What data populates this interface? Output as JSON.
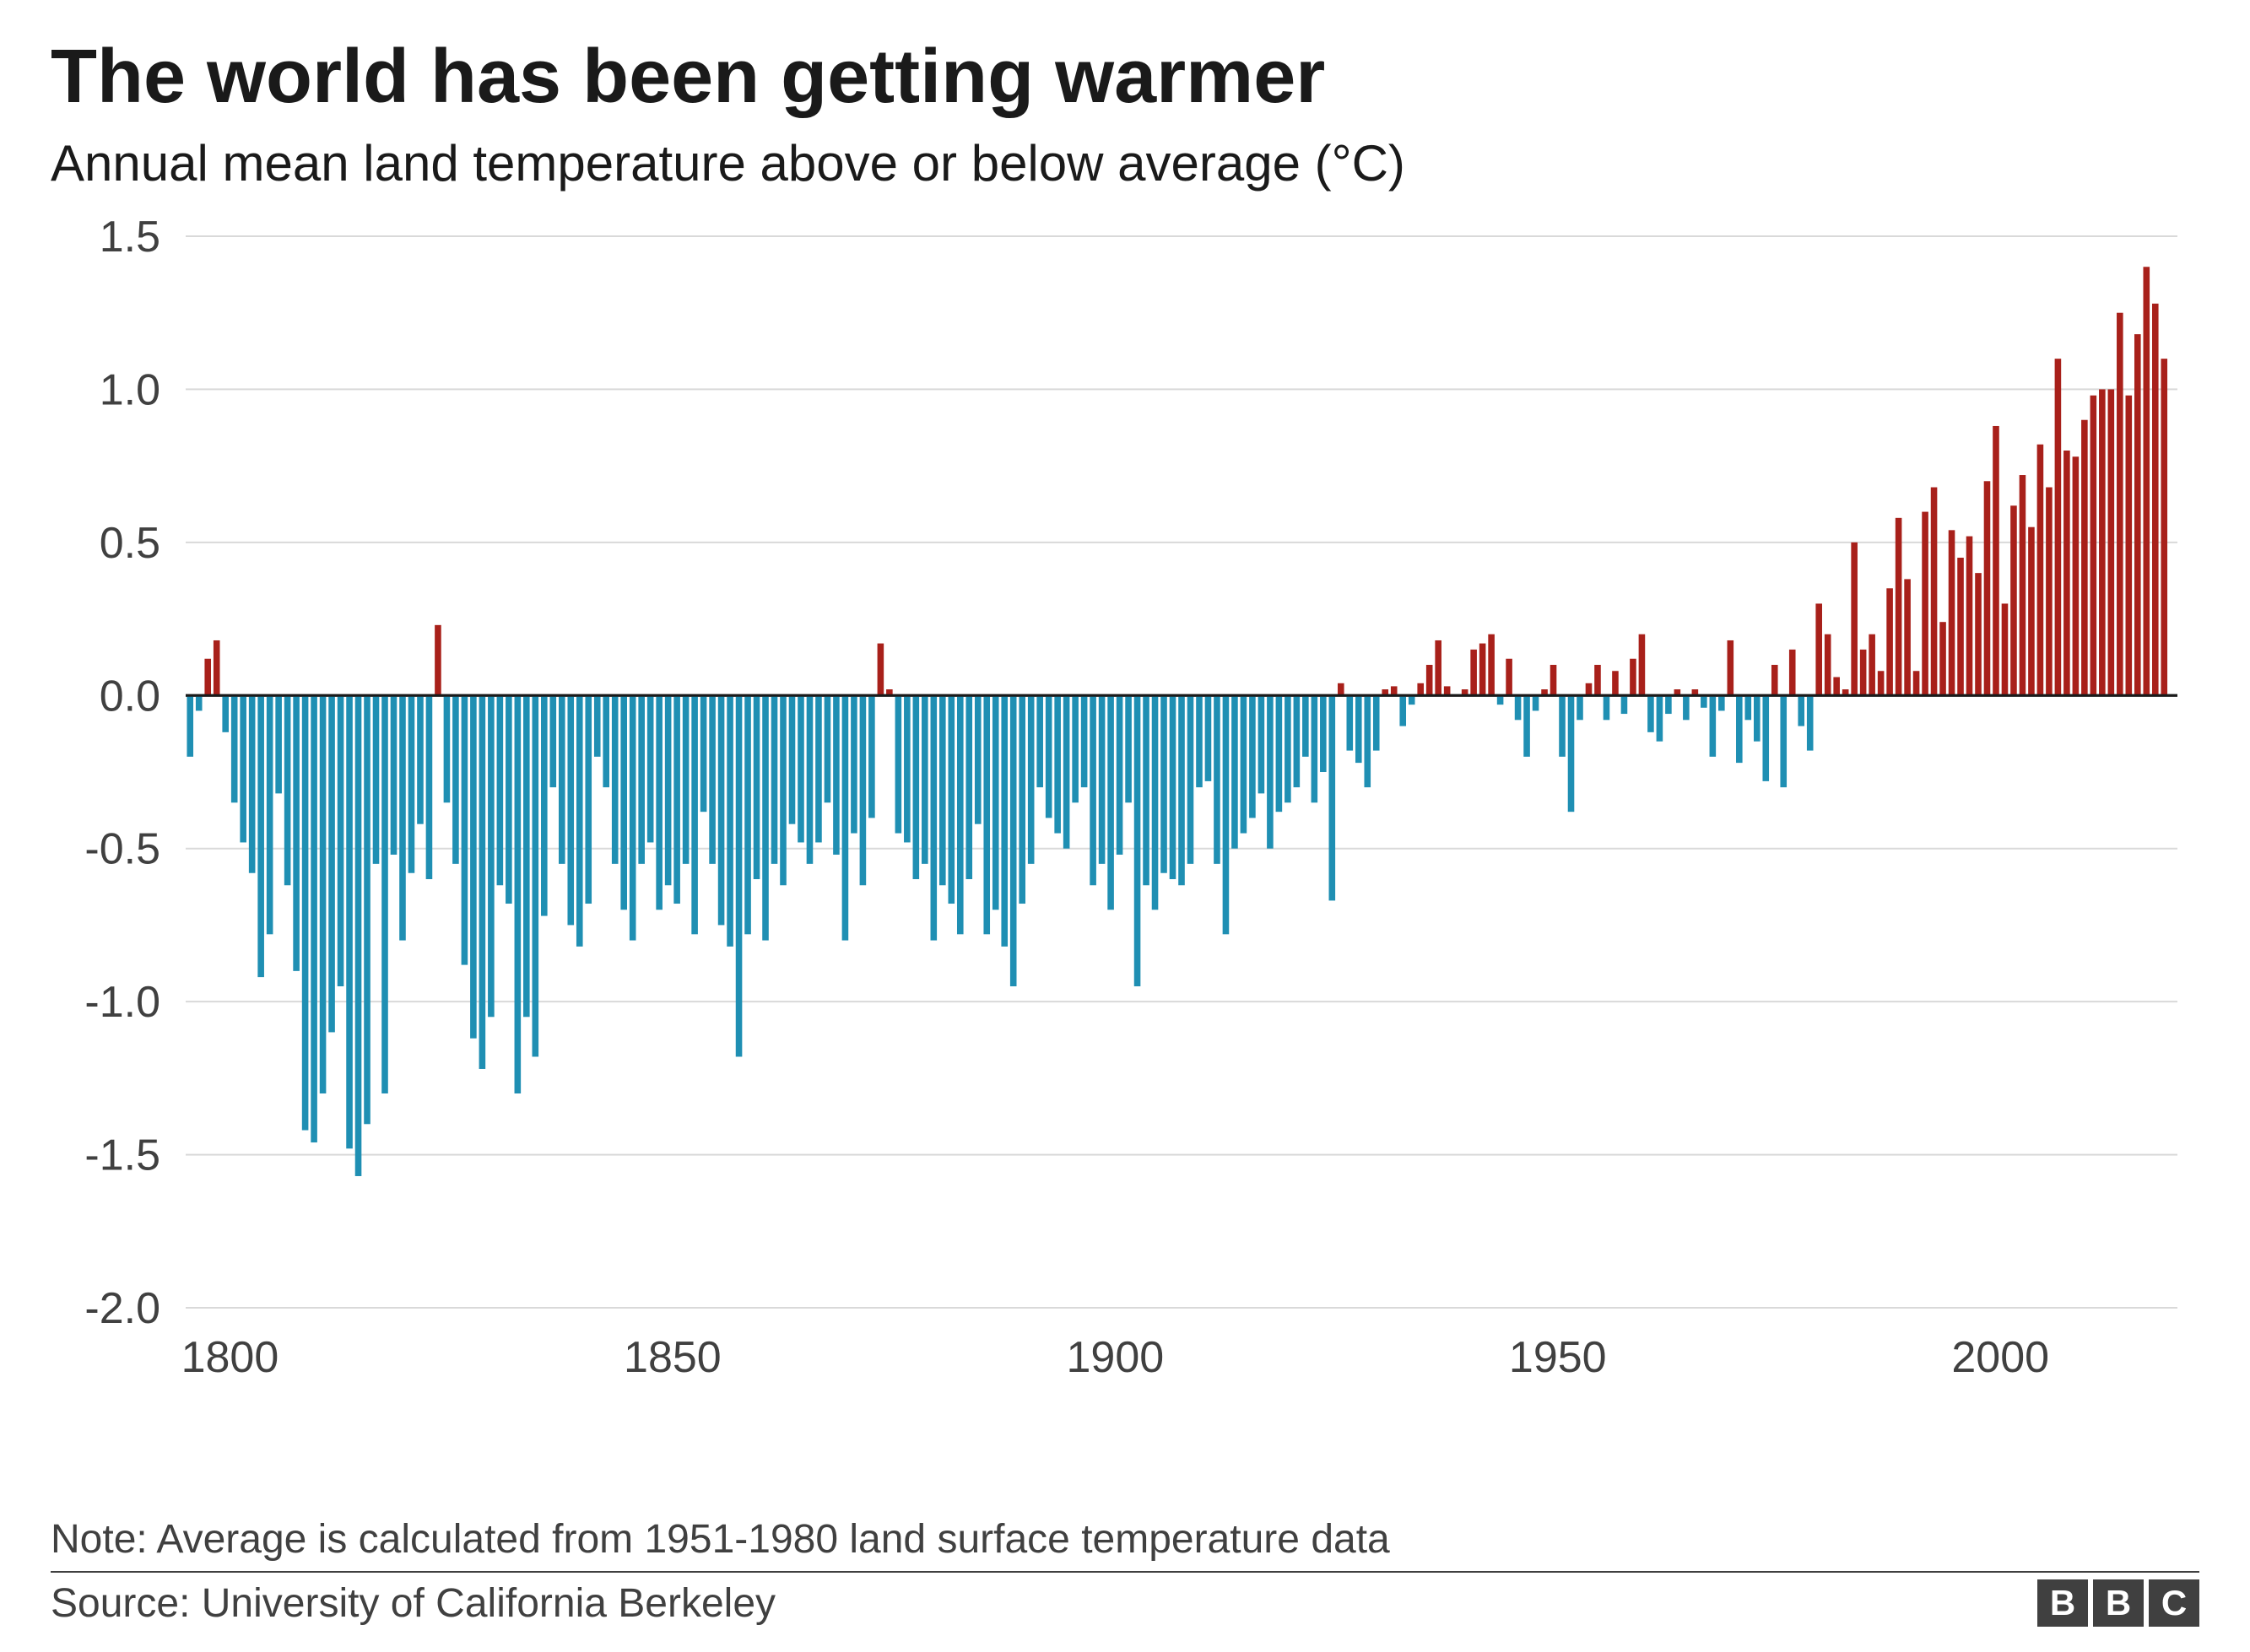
{
  "title": "The world has been getting warmer",
  "subtitle": "Annual mean land temperature above or below average (°C)",
  "note": "Note: Average is calculated from 1951-1980 land surface temperature data",
  "source": "Source: University of California Berkeley",
  "logo": {
    "letters": [
      "B",
      "B",
      "C"
    ]
  },
  "chart": {
    "type": "bar",
    "background_color": "#ffffff",
    "grid_color": "#d9d9d9",
    "axis_color": "#404040",
    "zero_line_color": "#1a1a1a",
    "zero_line_width": 3,
    "grid_line_width": 2,
    "text_color": "#404040",
    "tick_label_fontsize": 52,
    "positive_color": "#a8201a",
    "negative_color": "#1f8fb3",
    "x_start": 1795,
    "x_end": 2020,
    "x_ticks": [
      1800,
      1850,
      1900,
      1950,
      2000
    ],
    "y_min": -2.0,
    "y_max": 1.5,
    "y_ticks": [
      -2.0,
      -1.5,
      -1.0,
      -0.5,
      0.0,
      0.5,
      1.0,
      1.5
    ],
    "bar_gap_ratio": 0.28,
    "values": [
      -0.2,
      -0.05,
      0.12,
      0.18,
      -0.12,
      -0.35,
      -0.48,
      -0.58,
      -0.92,
      -0.78,
      -0.32,
      -0.62,
      -0.9,
      -1.42,
      -1.46,
      -1.3,
      -1.1,
      -0.95,
      -1.48,
      -1.57,
      -1.4,
      -0.55,
      -1.3,
      -0.52,
      -0.8,
      -0.58,
      -0.42,
      -0.6,
      0.23,
      -0.35,
      -0.55,
      -0.88,
      -1.12,
      -1.22,
      -1.05,
      -0.62,
      -0.68,
      -1.3,
      -1.05,
      -1.18,
      -0.72,
      -0.3,
      -0.55,
      -0.75,
      -0.82,
      -0.68,
      -0.2,
      -0.3,
      -0.55,
      -0.7,
      -0.8,
      -0.55,
      -0.48,
      -0.7,
      -0.62,
      -0.68,
      -0.55,
      -0.78,
      -0.38,
      -0.55,
      -0.75,
      -0.82,
      -1.18,
      -0.78,
      -0.6,
      -0.8,
      -0.55,
      -0.62,
      -0.42,
      -0.48,
      -0.55,
      -0.48,
      -0.35,
      -0.52,
      -0.8,
      -0.45,
      -0.62,
      -0.4,
      0.17,
      0.02,
      -0.45,
      -0.48,
      -0.6,
      -0.55,
      -0.8,
      -0.62,
      -0.68,
      -0.78,
      -0.6,
      -0.42,
      -0.78,
      -0.7,
      -0.82,
      -0.95,
      -0.68,
      -0.55,
      -0.3,
      -0.4,
      -0.45,
      -0.5,
      -0.35,
      -0.3,
      -0.62,
      -0.55,
      -0.7,
      -0.52,
      -0.35,
      -0.95,
      -0.62,
      -0.7,
      -0.58,
      -0.6,
      -0.62,
      -0.55,
      -0.3,
      -0.28,
      -0.55,
      -0.78,
      -0.5,
      -0.45,
      -0.4,
      -0.32,
      -0.5,
      -0.38,
      -0.35,
      -0.3,
      -0.2,
      -0.35,
      -0.25,
      -0.67,
      0.04,
      -0.18,
      -0.22,
      -0.3,
      -0.18,
      0.02,
      0.03,
      -0.1,
      -0.03,
      0.04,
      0.1,
      0.18,
      0.03,
      0.0,
      0.02,
      0.15,
      0.17,
      0.2,
      -0.03,
      0.12,
      -0.08,
      -0.2,
      -0.05,
      0.02,
      0.1,
      -0.2,
      -0.38,
      -0.08,
      0.04,
      0.1,
      -0.08,
      0.08,
      -0.06,
      0.12,
      0.2,
      -0.12,
      -0.15,
      -0.06,
      0.02,
      -0.08,
      0.02,
      -0.04,
      -0.2,
      -0.05,
      0.18,
      -0.22,
      -0.08,
      -0.15,
      -0.28,
      0.1,
      -0.3,
      0.15,
      -0.1,
      -0.18,
      0.3,
      0.2,
      0.06,
      0.02,
      0.5,
      0.15,
      0.2,
      0.08,
      0.35,
      0.58,
      0.38,
      0.08,
      0.6,
      0.68,
      0.24,
      0.54,
      0.45,
      0.52,
      0.4,
      0.7,
      0.88,
      0.3,
      0.62,
      0.72,
      0.55,
      0.82,
      0.68,
      1.1,
      0.8,
      0.78,
      0.9,
      0.98,
      1.0,
      1.0,
      1.25,
      0.98,
      1.18,
      1.4,
      1.28,
      1.1
    ]
  }
}
